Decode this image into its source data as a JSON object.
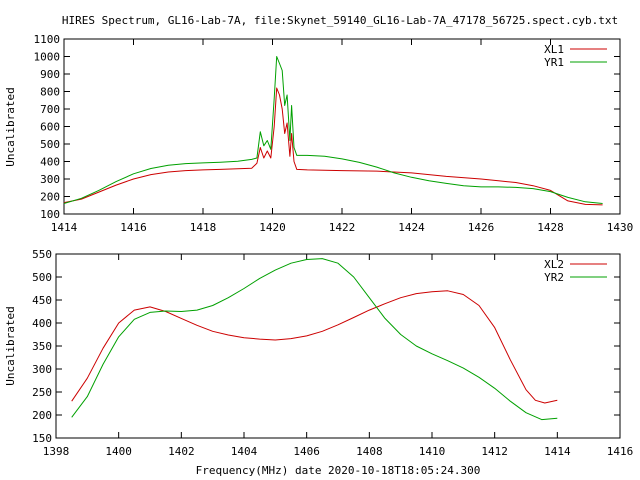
{
  "page_title": "HIRES Spectrum, GL16-Lab-7A, file:Skynet_59140_GL16-Lab-7A_47178_56725.spect.cyb.txt",
  "colors": {
    "red": "#cc0000",
    "green": "#00a000"
  },
  "chart_data": [
    {
      "type": "line",
      "ylabel": "Uncalibrated",
      "xlabel": "",
      "xlim": [
        1414,
        1430
      ],
      "ylim": [
        100,
        1100
      ],
      "x_ticks": [
        1414,
        1416,
        1418,
        1420,
        1422,
        1424,
        1426,
        1428,
        1430
      ],
      "y_ticks": [
        100,
        200,
        300,
        400,
        500,
        600,
        700,
        800,
        900,
        1000,
        1100
      ],
      "legend_position": "top-right",
      "series": [
        {
          "name": "XL1",
          "color": "#cc0000",
          "x": [
            1414.0,
            1414.5,
            1415.0,
            1415.5,
            1416.0,
            1416.5,
            1417.0,
            1417.5,
            1418.0,
            1418.5,
            1419.0,
            1419.4,
            1419.55,
            1419.65,
            1419.75,
            1419.85,
            1419.95,
            1420.05,
            1420.12,
            1420.2,
            1420.28,
            1420.35,
            1420.42,
            1420.5,
            1420.55,
            1420.62,
            1420.7,
            1421.0,
            1421.5,
            1422.0,
            1423.0,
            1424.0,
            1425.0,
            1426.0,
            1426.5,
            1427.0,
            1427.5,
            1428.0,
            1428.5,
            1429.0,
            1429.5
          ],
          "values": [
            165,
            185,
            225,
            265,
            300,
            325,
            340,
            348,
            352,
            355,
            358,
            362,
            390,
            480,
            420,
            460,
            420,
            600,
            820,
            780,
            700,
            560,
            620,
            430,
            560,
            400,
            355,
            352,
            350,
            348,
            345,
            335,
            315,
            300,
            290,
            280,
            262,
            235,
            175,
            155,
            152
          ]
        },
        {
          "name": "YR1",
          "color": "#00a000",
          "x": [
            1414.0,
            1414.5,
            1415.0,
            1415.5,
            1416.0,
            1416.5,
            1417.0,
            1417.5,
            1418.0,
            1418.5,
            1419.0,
            1419.4,
            1419.55,
            1419.65,
            1419.75,
            1419.85,
            1419.95,
            1420.05,
            1420.12,
            1420.2,
            1420.28,
            1420.35,
            1420.42,
            1420.5,
            1420.55,
            1420.62,
            1420.7,
            1421.0,
            1421.5,
            1422.0,
            1422.5,
            1423.0,
            1423.5,
            1424.0,
            1424.5,
            1425.0,
            1425.5,
            1426.0,
            1426.5,
            1427.0,
            1427.5,
            1428.0,
            1428.5,
            1429.0,
            1429.5
          ],
          "values": [
            160,
            190,
            235,
            285,
            330,
            360,
            378,
            388,
            392,
            396,
            402,
            412,
            420,
            570,
            490,
            520,
            470,
            760,
            1000,
            960,
            920,
            720,
            780,
            520,
            720,
            480,
            435,
            435,
            430,
            415,
            395,
            368,
            335,
            310,
            290,
            275,
            262,
            255,
            255,
            252,
            245,
            228,
            195,
            170,
            160
          ]
        }
      ]
    },
    {
      "type": "line",
      "ylabel": "Uncalibrated",
      "xlabel": "Frequency(MHz) date 2020-10-18T18:05:24.300",
      "xlim": [
        1398,
        1416
      ],
      "ylim": [
        150,
        550
      ],
      "x_ticks": [
        1398,
        1400,
        1402,
        1404,
        1406,
        1408,
        1410,
        1412,
        1414,
        1416
      ],
      "y_ticks": [
        150,
        200,
        250,
        300,
        350,
        400,
        450,
        500,
        550
      ],
      "legend_position": "top-right",
      "series": [
        {
          "name": "XL2",
          "color": "#cc0000",
          "x": [
            1398.5,
            1399.0,
            1399.5,
            1400.0,
            1400.5,
            1401.0,
            1401.5,
            1402.0,
            1402.5,
            1403.0,
            1403.5,
            1404.0,
            1404.5,
            1405.0,
            1405.5,
            1406.0,
            1406.5,
            1407.0,
            1407.5,
            1408.0,
            1408.5,
            1409.0,
            1409.5,
            1410.0,
            1410.5,
            1411.0,
            1411.5,
            1412.0,
            1412.5,
            1413.0,
            1413.3,
            1413.6,
            1414.0
          ],
          "values": [
            230,
            280,
            345,
            400,
            428,
            435,
            425,
            410,
            395,
            382,
            374,
            368,
            365,
            363,
            366,
            372,
            382,
            396,
            412,
            428,
            442,
            455,
            464,
            468,
            470,
            462,
            438,
            390,
            320,
            255,
            232,
            226,
            232
          ]
        },
        {
          "name": "YR2",
          "color": "#00a000",
          "x": [
            1398.5,
            1399.0,
            1399.5,
            1400.0,
            1400.5,
            1401.0,
            1401.5,
            1402.0,
            1402.5,
            1403.0,
            1403.5,
            1404.0,
            1404.5,
            1405.0,
            1405.5,
            1406.0,
            1406.5,
            1407.0,
            1407.5,
            1408.0,
            1408.5,
            1409.0,
            1409.5,
            1410.0,
            1410.5,
            1411.0,
            1411.5,
            1412.0,
            1412.5,
            1413.0,
            1413.5,
            1414.0
          ],
          "values": [
            195,
            240,
            310,
            370,
            408,
            423,
            426,
            425,
            428,
            438,
            455,
            475,
            497,
            515,
            530,
            538,
            540,
            530,
            500,
            455,
            410,
            375,
            350,
            333,
            318,
            302,
            282,
            258,
            230,
            205,
            190,
            193
          ]
        }
      ]
    }
  ]
}
